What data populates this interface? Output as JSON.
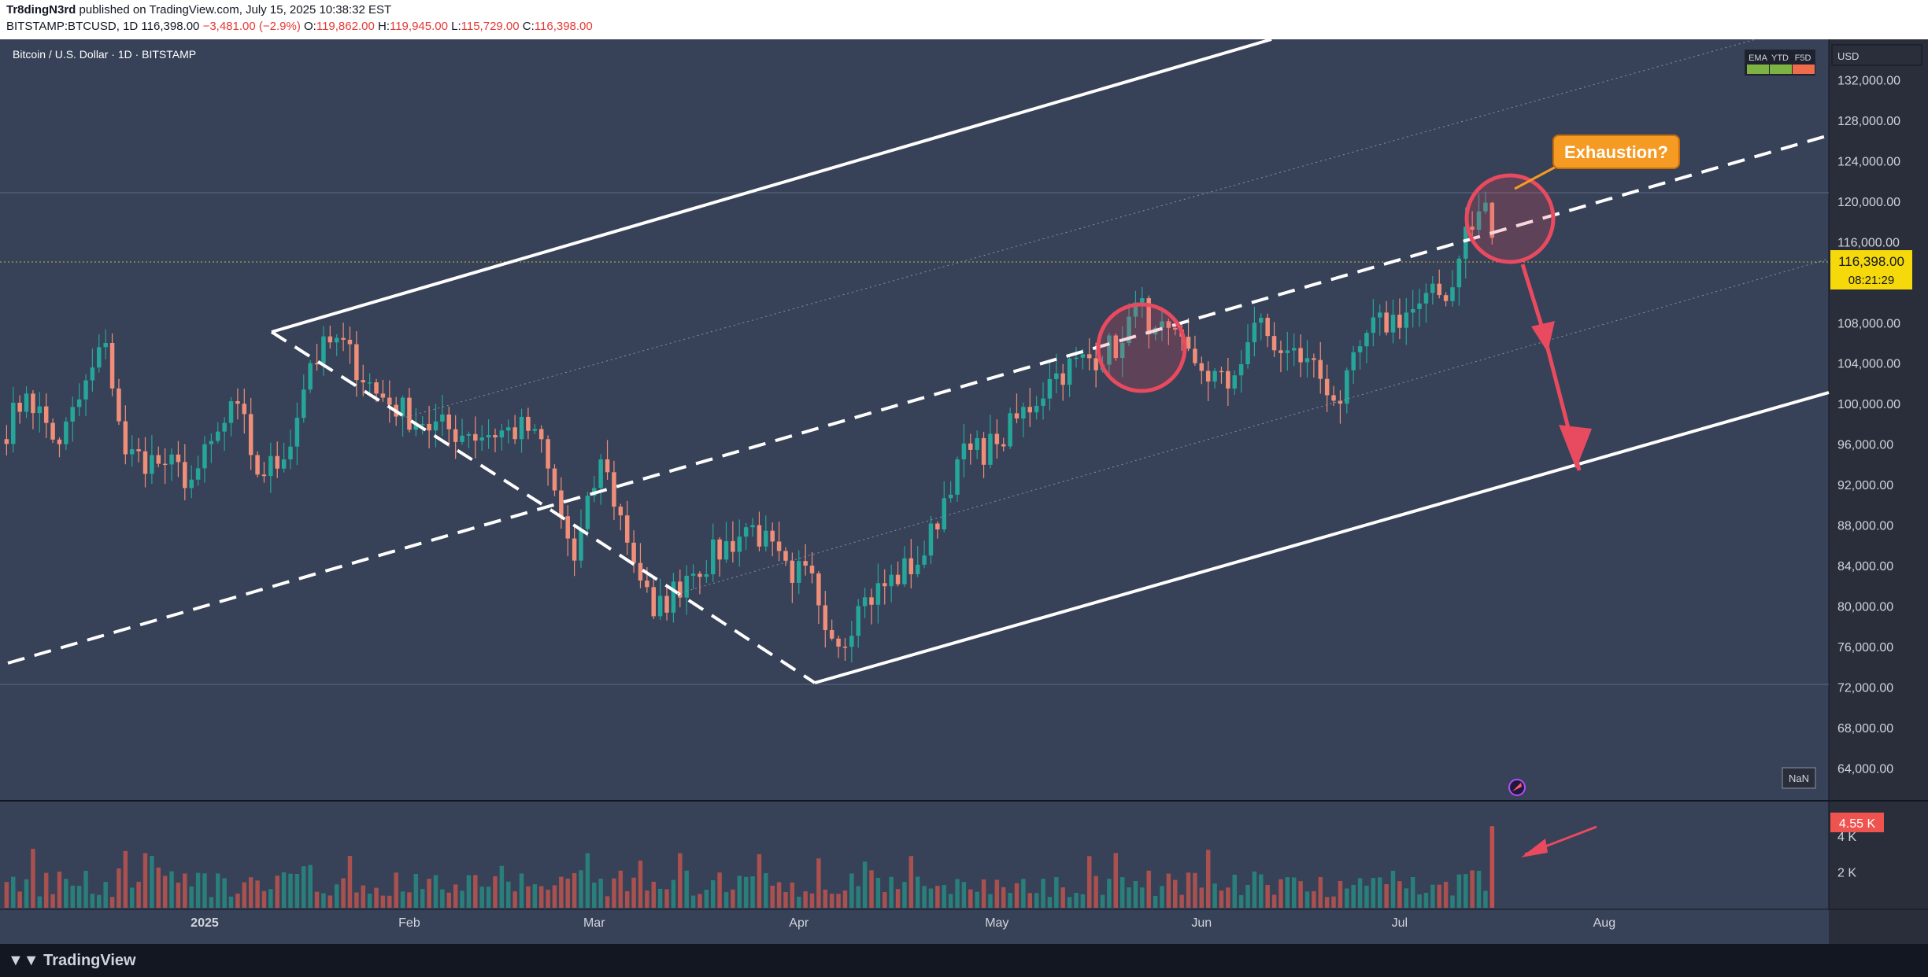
{
  "header": {
    "publisher": "Tr8dingN3rd",
    "published_text": "published on TradingView.com, July 15, 2025 10:38:32 EST",
    "symbol": "BITSTAMP:BTCUSD, 1D",
    "last": "116,398.00",
    "change": "−3,481.00 (−2.9%)",
    "open_label": "O:",
    "open": "119,862.00",
    "high_label": "H:",
    "high": "119,945.00",
    "low_label": "L:",
    "low": "115,729.00",
    "close_label": "C:",
    "close": "116,398.00"
  },
  "chart_title": "Bitcoin / U.S. Dollar · 1D · BITSTAMP",
  "indicator_pills": [
    "EMA",
    "YTD",
    "F5D"
  ],
  "currency": "USD",
  "price_tag": {
    "value": "116,398.00",
    "countdown": "08:21:29"
  },
  "volume_tag": "4.55 K",
  "nan_label": "NaN",
  "annotation": "Exhaustion?",
  "footer": {
    "brand": "TradingView"
  },
  "colors": {
    "background": "#2a2e3a",
    "up": "#26a69a",
    "down": "#ef8f7a",
    "price_tag": "#f5d90a",
    "annotation_fill": "#f59a23",
    "highlight": "#e84a5f",
    "channel": "#ffffff"
  },
  "chart_data": {
    "type": "candlestick",
    "title": "Bitcoin / U.S. Dollar · 1D · BITSTAMP",
    "y_axis": {
      "ticks": [
        132000,
        128000,
        124000,
        120000,
        116000,
        112000,
        108000,
        104000,
        100000,
        96000,
        92000,
        88000,
        84000,
        80000,
        76000,
        72000,
        68000,
        64000
      ],
      "tick_labels": [
        "132,000.00",
        "128,000.00",
        "124,000.00",
        "120,000.00",
        "116,000.00",
        "112,000.00",
        "108,000.00",
        "104,000.00",
        "100,000.00",
        "96,000.00",
        "92,000.00",
        "88,000.00",
        "84,000.00",
        "80,000.00",
        "76,000.00",
        "72,000.00",
        "68,000.00",
        "64,000.00"
      ],
      "range": [
        61000,
        136000
      ]
    },
    "x_axis": {
      "ticks": [
        "2025-01-01",
        "2025-02-01",
        "2025-03-01",
        "2025-04-01",
        "2025-05-01",
        "2025-06-01",
        "2025-07-01",
        "2025-08-01"
      ],
      "tick_labels": [
        "2025",
        "Feb",
        "Mar",
        "Apr",
        "May",
        "Jun",
        "Jul",
        "Aug"
      ],
      "range": [
        "2024-12-01",
        "2025-09-04"
      ]
    },
    "volume_axis": {
      "ticks": [
        2000,
        4000
      ],
      "tick_labels": [
        "2 K",
        "4 K"
      ]
    },
    "series_path": [
      [
        "2024-12-01",
        96500
      ],
      [
        "2024-12-05",
        101000
      ],
      [
        "2024-12-10",
        96000
      ],
      [
        "2024-12-17",
        106000
      ],
      [
        "2024-12-20",
        95000
      ],
      [
        "2024-12-26",
        94000
      ],
      [
        "2024-12-30",
        92500
      ],
      [
        "2025-01-06",
        100000
      ],
      [
        "2025-01-09",
        93000
      ],
      [
        "2025-01-13",
        94500
      ],
      [
        "2025-01-17",
        104000
      ],
      [
        "2025-01-21",
        106500
      ],
      [
        "2025-01-27",
        101000
      ],
      [
        "2025-02-03",
        98000
      ],
      [
        "2025-02-10",
        97000
      ],
      [
        "2025-02-20",
        97500
      ],
      [
        "2025-02-26",
        84500
      ],
      [
        "2025-03-02",
        94500
      ],
      [
        "2025-03-10",
        79000
      ],
      [
        "2025-03-15",
        83000
      ],
      [
        "2025-03-25",
        88000
      ],
      [
        "2025-03-31",
        82300
      ],
      [
        "2025-04-02",
        84000
      ],
      [
        "2025-04-07",
        76000
      ],
      [
        "2025-04-10",
        80000
      ],
      [
        "2025-04-20",
        85000
      ],
      [
        "2025-04-25",
        94500
      ],
      [
        "2025-05-01",
        96000
      ],
      [
        "2025-05-10",
        103000
      ],
      [
        "2025-05-20",
        106000
      ],
      [
        "2025-05-22",
        110000
      ],
      [
        "2025-05-25",
        107500
      ],
      [
        "2025-05-31",
        104000
      ],
      [
        "2025-06-05",
        101500
      ],
      [
        "2025-06-09",
        108000
      ],
      [
        "2025-06-13",
        105000
      ],
      [
        "2025-06-17",
        104500
      ],
      [
        "2025-06-22",
        100000
      ],
      [
        "2025-06-26",
        107000
      ],
      [
        "2025-07-02",
        109000
      ],
      [
        "2025-07-09",
        111500
      ],
      [
        "2025-07-11",
        117500
      ],
      [
        "2025-07-13",
        119000
      ],
      [
        "2025-07-14",
        119862
      ],
      [
        "2025-07-15",
        116398
      ]
    ],
    "last_candle": {
      "date": "2025-07-15",
      "open": 119862,
      "high": 119945,
      "low": 115729,
      "close": 116398
    },
    "last_volume": 4550
  }
}
